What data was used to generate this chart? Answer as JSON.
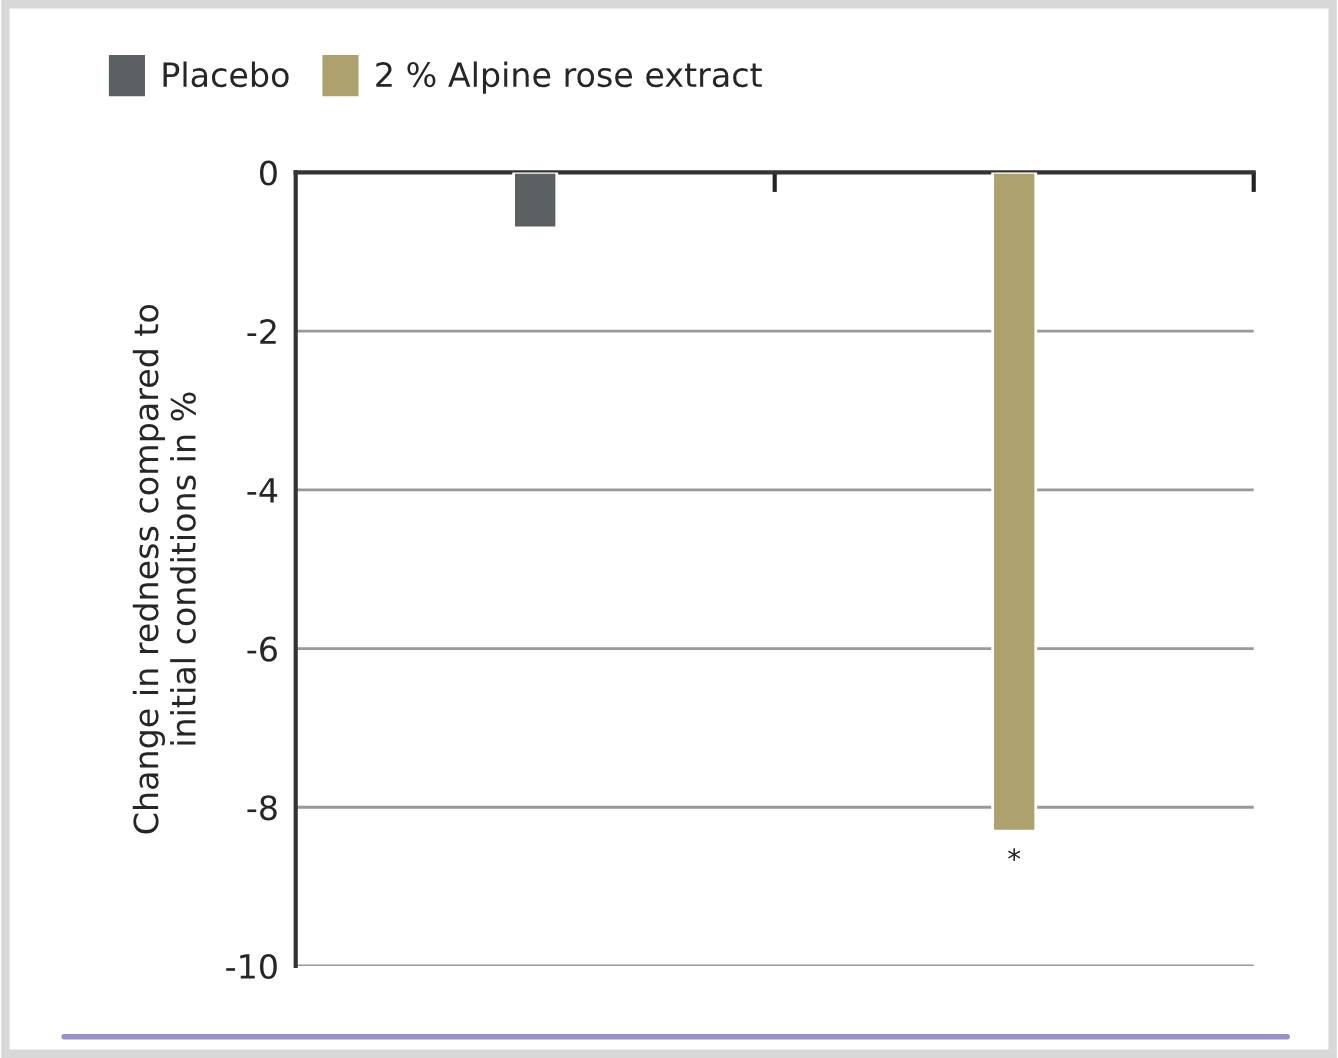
{
  "chart_data": {
    "type": "bar",
    "ylabel": "Change in redness compared to\ninitial conditions in %",
    "categories": [
      null,
      null
    ],
    "series": [
      {
        "name": "Placebo",
        "color": "#5b6062",
        "values": [
          -0.7,
          null
        ]
      },
      {
        "name": "2 % Alpine rose extract",
        "color": "#ada26e",
        "values": [
          null,
          -8.3
        ]
      }
    ],
    "ylim": [
      -10,
      0
    ],
    "yticks": [
      -10,
      -8,
      -6,
      -4,
      -2,
      0
    ],
    "grid": "y",
    "legend": "top left",
    "tick_labels": "y",
    "annotations": [
      "*"
    ]
  }
}
